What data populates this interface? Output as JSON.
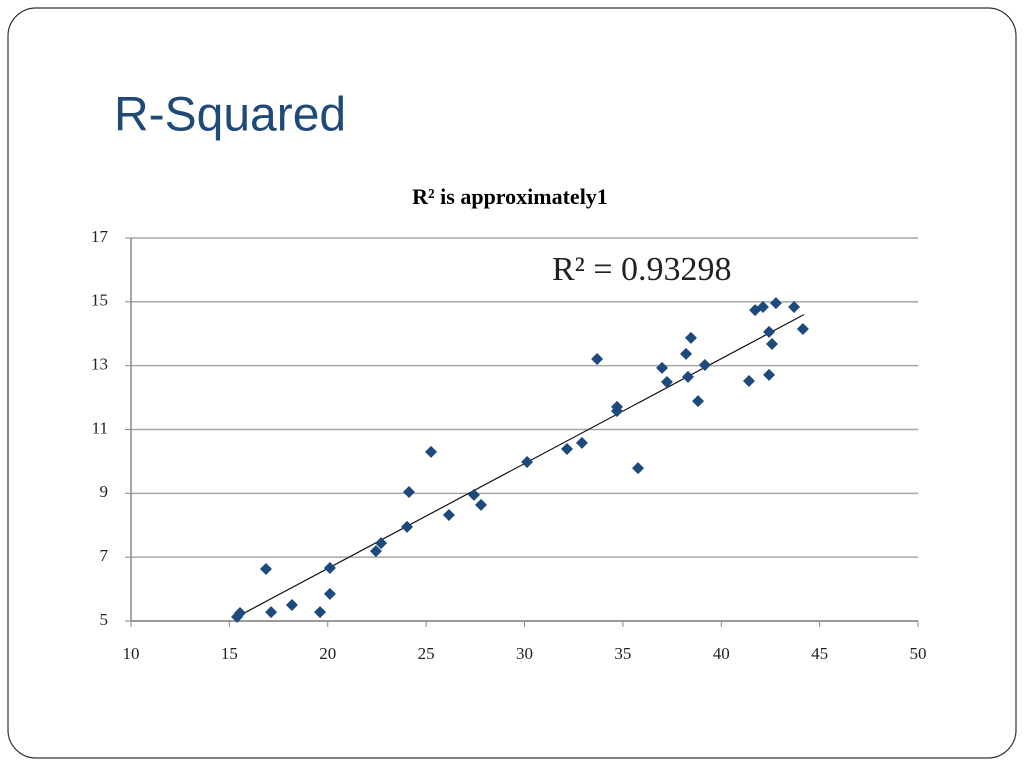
{
  "slide_title": "R-Squared",
  "chart_data": {
    "type": "scatter",
    "title": "R² is approximately1",
    "annotation": "R² = 0.93298",
    "color": "#1c4a7c",
    "grid": true,
    "xlim": [
      10,
      50
    ],
    "xticks": [
      10,
      15,
      20,
      25,
      30,
      35,
      40,
      45,
      50
    ],
    "ylim": [
      5,
      17
    ],
    "yticks": [
      5,
      7,
      9,
      11,
      13,
      15,
      17
    ],
    "trendline": {
      "x": [
        15.3,
        44.2
      ],
      "y": [
        5.1,
        14.6
      ]
    },
    "x": [
      15.39,
      15.54,
      16.86,
      17.12,
      18.18,
      19.61,
      20.11,
      20.11,
      22.45,
      22.71,
      24.03,
      24.13,
      25.25,
      26.16,
      27.43,
      27.79,
      30.13,
      32.16,
      32.92,
      33.69,
      34.7,
      34.7,
      35.77,
      36.99,
      37.24,
      38.21,
      38.31,
      38.46,
      38.82,
      39.17,
      41.41,
      41.72,
      42.12,
      42.43,
      42.43,
      42.58,
      42.78,
      43.7,
      44.15
    ],
    "values": [
      5.13,
      5.25,
      6.63,
      5.28,
      5.5,
      5.28,
      6.66,
      5.85,
      7.19,
      7.44,
      7.95,
      9.04,
      10.3,
      8.32,
      8.95,
      8.64,
      9.98,
      10.39,
      10.58,
      13.21,
      11.71,
      11.58,
      9.79,
      12.93,
      12.49,
      13.37,
      12.65,
      13.87,
      11.89,
      13.02,
      12.52,
      14.74,
      14.84,
      12.71,
      14.06,
      13.68,
      14.96,
      14.84,
      14.15
    ]
  }
}
